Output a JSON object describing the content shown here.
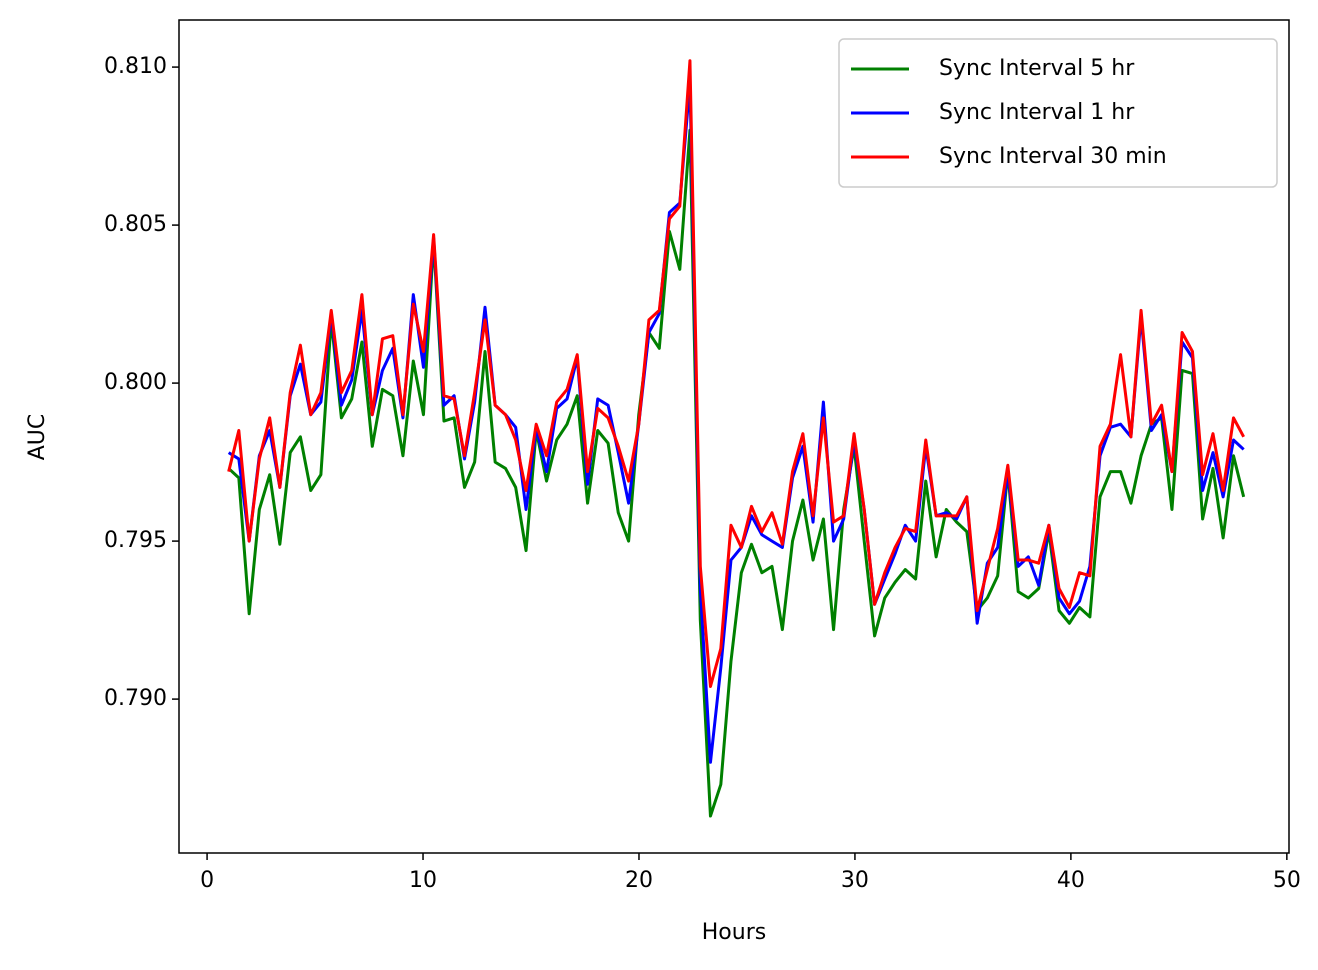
{
  "chart_data": {
    "type": "line",
    "xlabel": "Hours",
    "ylabel": "AUC",
    "x": [
      1.0,
      1.47,
      1.95,
      2.42,
      2.9,
      3.37,
      3.85,
      4.32,
      4.8,
      5.27,
      5.75,
      6.22,
      6.7,
      7.17,
      7.65,
      8.12,
      8.6,
      9.07,
      9.55,
      10.02,
      10.49,
      10.97,
      11.44,
      11.92,
      12.39,
      12.87,
      13.34,
      13.82,
      14.29,
      14.77,
      15.24,
      15.72,
      16.19,
      16.67,
      17.14,
      17.62,
      18.09,
      18.57,
      19.04,
      19.52,
      19.99,
      20.46,
      20.94,
      21.41,
      21.89,
      22.36,
      22.84,
      23.31,
      23.79,
      24.26,
      24.74,
      25.21,
      25.69,
      26.16,
      26.64,
      27.11,
      27.59,
      28.06,
      28.54,
      29.01,
      29.48,
      29.96,
      30.43,
      30.91,
      31.38,
      31.86,
      32.33,
      32.81,
      33.28,
      33.76,
      34.23,
      34.71,
      35.18,
      35.66,
      36.13,
      36.61,
      37.08,
      37.56,
      38.03,
      38.51,
      38.98,
      39.45,
      39.93,
      40.4,
      40.88,
      41.35,
      41.83,
      42.3,
      42.78,
      43.25,
      43.73,
      44.2,
      44.68,
      45.15,
      45.63,
      46.1,
      46.58,
      47.05,
      47.53,
      48.0
    ],
    "series": [
      {
        "name": "Sync Interval 5 hr",
        "color": "#008000",
        "values": [
          0.7973,
          0.797,
          0.7927,
          0.796,
          0.7971,
          0.7949,
          0.7978,
          0.7983,
          0.7966,
          0.7971,
          0.802,
          0.7989,
          0.7995,
          0.8013,
          0.798,
          0.7998,
          0.7996,
          0.7977,
          0.8007,
          0.799,
          0.8045,
          0.7988,
          0.7989,
          0.7967,
          0.7975,
          0.801,
          0.7975,
          0.7973,
          0.7967,
          0.7947,
          0.7985,
          0.7969,
          0.7982,
          0.7987,
          0.7996,
          0.7962,
          0.7985,
          0.7981,
          0.7959,
          0.795,
          0.799,
          0.8016,
          0.8011,
          0.8048,
          0.8036,
          0.808,
          0.7925,
          0.7863,
          0.7873,
          0.7912,
          0.794,
          0.7949,
          0.794,
          0.7942,
          0.7922,
          0.795,
          0.7963,
          0.7944,
          0.7957,
          0.7922,
          0.796,
          0.798,
          0.795,
          0.792,
          0.7932,
          0.7937,
          0.7941,
          0.7938,
          0.7969,
          0.7945,
          0.796,
          0.7956,
          0.7953,
          0.7928,
          0.7932,
          0.7939,
          0.7972,
          0.7934,
          0.7932,
          0.7935,
          0.7953,
          0.7928,
          0.7924,
          0.7929,
          0.7926,
          0.7964,
          0.7972,
          0.7972,
          0.7962,
          0.7977,
          0.7987,
          0.7989,
          0.796,
          0.8004,
          0.8003,
          0.7957,
          0.7973,
          0.7951,
          0.7977,
          0.7964
        ]
      },
      {
        "name": "Sync Interval 1 hr",
        "color": "#0000ff",
        "values": [
          0.7978,
          0.7976,
          0.795,
          0.7977,
          0.7985,
          0.7967,
          0.7996,
          0.8006,
          0.799,
          0.7994,
          0.8022,
          0.7993,
          0.8001,
          0.8023,
          0.799,
          0.8004,
          0.8011,
          0.7989,
          0.8028,
          0.8005,
          0.8046,
          0.7993,
          0.7996,
          0.7976,
          0.7994,
          0.8024,
          0.7993,
          0.799,
          0.7986,
          0.796,
          0.7986,
          0.7972,
          0.7992,
          0.7995,
          0.8008,
          0.7968,
          0.7995,
          0.7993,
          0.7978,
          0.7962,
          0.7987,
          0.8016,
          0.8022,
          0.8054,
          0.8057,
          0.8095,
          0.7935,
          0.788,
          0.791,
          0.7944,
          0.7948,
          0.7958,
          0.7952,
          0.795,
          0.7948,
          0.797,
          0.798,
          0.7956,
          0.7994,
          0.795,
          0.7957,
          0.7982,
          0.796,
          0.793,
          0.7938,
          0.7946,
          0.7955,
          0.795,
          0.798,
          0.7958,
          0.7959,
          0.7957,
          0.7964,
          0.7924,
          0.7943,
          0.7948,
          0.7972,
          0.7942,
          0.7945,
          0.7936,
          0.7955,
          0.7932,
          0.7927,
          0.7931,
          0.7942,
          0.7977,
          0.7986,
          0.7987,
          0.7983,
          0.8021,
          0.7985,
          0.799,
          0.7972,
          0.8013,
          0.8008,
          0.7966,
          0.7978,
          0.7964,
          0.7982,
          0.7979
        ]
      },
      {
        "name": "Sync Interval 30 min",
        "color": "#ff0000",
        "values": [
          0.7972,
          0.7985,
          0.795,
          0.7976,
          0.7989,
          0.7967,
          0.7997,
          0.8012,
          0.799,
          0.7997,
          0.8023,
          0.7997,
          0.8004,
          0.8028,
          0.799,
          0.8014,
          0.8015,
          0.799,
          0.8025,
          0.801,
          0.8047,
          0.7996,
          0.7995,
          0.7977,
          0.7997,
          0.802,
          0.7993,
          0.799,
          0.7982,
          0.7966,
          0.7987,
          0.7977,
          0.7994,
          0.7998,
          0.8009,
          0.7972,
          0.7992,
          0.7989,
          0.798,
          0.7969,
          0.7987,
          0.802,
          0.8023,
          0.8052,
          0.8056,
          0.8102,
          0.7942,
          0.7904,
          0.7916,
          0.7955,
          0.7948,
          0.7961,
          0.7953,
          0.7959,
          0.7949,
          0.7972,
          0.7984,
          0.7958,
          0.7989,
          0.7956,
          0.7958,
          0.7984,
          0.796,
          0.793,
          0.794,
          0.7948,
          0.7954,
          0.7953,
          0.7982,
          0.7958,
          0.7958,
          0.7958,
          0.7964,
          0.7928,
          0.7941,
          0.7954,
          0.7974,
          0.7944,
          0.7944,
          0.7943,
          0.7955,
          0.7935,
          0.7929,
          0.794,
          0.7939,
          0.798,
          0.7987,
          0.8009,
          0.7983,
          0.8023,
          0.7987,
          0.7993,
          0.7972,
          0.8016,
          0.801,
          0.7971,
          0.7984,
          0.7966,
          0.7989,
          0.7983
        ]
      }
    ],
    "xlim": [
      -1.3,
      50.1
    ],
    "xticks": [
      0,
      10,
      20,
      30,
      40,
      50
    ],
    "ylim": [
      0.78513,
      0.81149
    ],
    "yticks": [
      {
        "value": 0.79,
        "label": "0.790"
      },
      {
        "value": 0.795,
        "label": "0.795"
      },
      {
        "value": 0.8,
        "label": "0.800"
      },
      {
        "value": 0.805,
        "label": "0.805"
      },
      {
        "value": 0.81,
        "label": "0.810"
      }
    ],
    "grid": false,
    "legend": "upper right"
  }
}
